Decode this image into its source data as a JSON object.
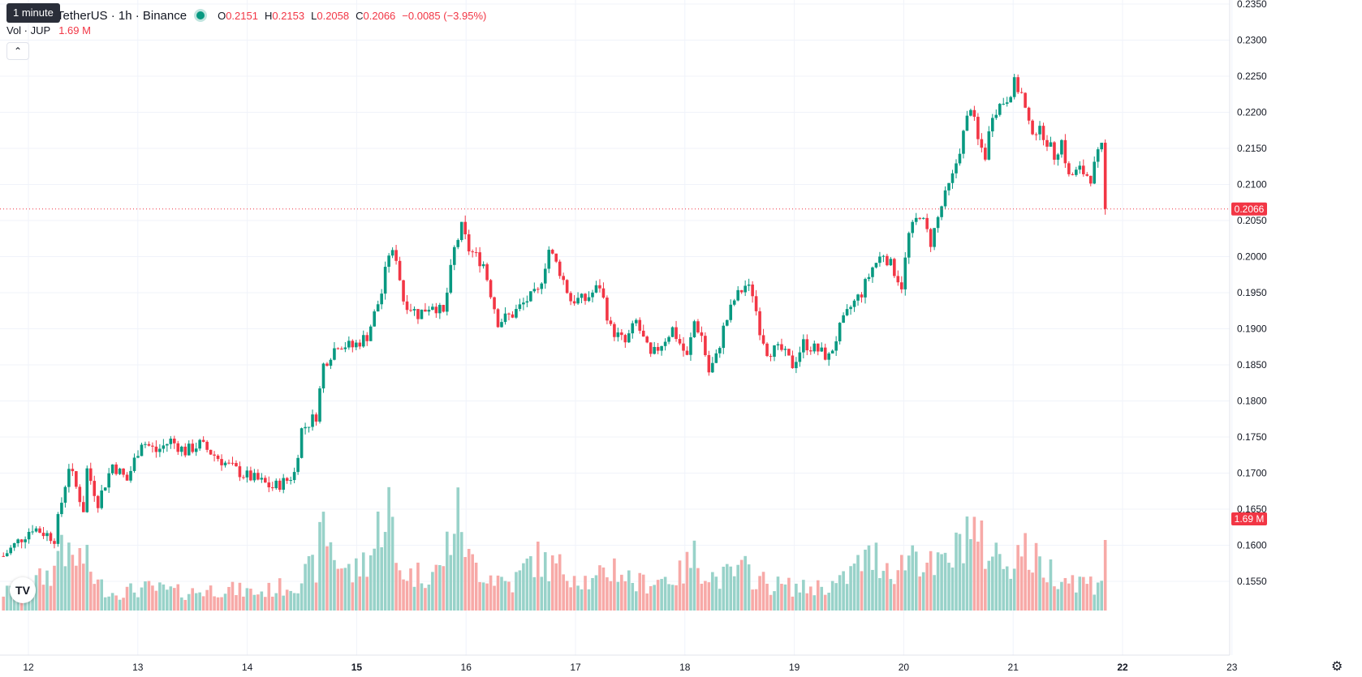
{
  "header": {
    "tooltip": "1 minute",
    "symbol": "TetherUS · 1h · Binance",
    "ohlc": [
      {
        "k": "O",
        "v": "0.2151"
      },
      {
        "k": "H",
        "v": "0.2153"
      },
      {
        "k": "L",
        "v": "0.2058"
      },
      {
        "k": "C",
        "v": "0.2066"
      }
    ],
    "change": "−0.0085 (−3.95%)",
    "vol_label": "Vol · JUP",
    "vol_value": "1.69 M"
  },
  "icons": {
    "collapse": "chevron-up-icon",
    "logo": "tradingview-logo",
    "settings": "gear-icon"
  },
  "colors": {
    "up": "#089981",
    "down": "#f23645",
    "vol_up": "#98d2c9",
    "vol_down": "#f7a9a7",
    "grid": "#f0f3fa"
  },
  "chart_data": {
    "type": "candlestick",
    "y_ticks": [
      "0.2350",
      "0.2300",
      "0.2250",
      "0.2200",
      "0.2150",
      "0.2100",
      "0.2050",
      "0.2000",
      "0.1950",
      "0.1900",
      "0.1850",
      "0.1800",
      "0.1750",
      "0.1700",
      "0.1650",
      "0.1600",
      "0.1550"
    ],
    "x_ticks": [
      {
        "label": "12",
        "bold": false
      },
      {
        "label": "13",
        "bold": false
      },
      {
        "label": "14",
        "bold": false
      },
      {
        "label": "15",
        "bold": true
      },
      {
        "label": "16",
        "bold": false
      },
      {
        "label": "17",
        "bold": false
      },
      {
        "label": "18",
        "bold": false
      },
      {
        "label": "19",
        "bold": false
      },
      {
        "label": "20",
        "bold": false
      },
      {
        "label": "21",
        "bold": false
      },
      {
        "label": "22",
        "bold": true
      },
      {
        "label": "23",
        "bold": false
      }
    ],
    "last_price": "0.2066",
    "last_volume": "1.69 M",
    "price_path": [
      [
        0,
        0.1585
      ],
      [
        8,
        0.1625
      ],
      [
        14,
        0.161
      ],
      [
        16,
        0.166
      ],
      [
        18,
        0.171
      ],
      [
        22,
        0.165
      ],
      [
        23,
        0.1705
      ],
      [
        26,
        0.166
      ],
      [
        30,
        0.1712
      ],
      [
        34,
        0.169
      ],
      [
        38,
        0.1745
      ],
      [
        42,
        0.173
      ],
      [
        46,
        0.1745
      ],
      [
        50,
        0.173
      ],
      [
        54,
        0.174
      ],
      [
        58,
        0.1725
      ],
      [
        62,
        0.171
      ],
      [
        66,
        0.1698
      ],
      [
        70,
        0.169
      ],
      [
        74,
        0.168
      ],
      [
        78,
        0.169
      ],
      [
        80,
        0.17
      ],
      [
        82,
        0.176
      ],
      [
        86,
        0.178
      ],
      [
        88,
        0.185
      ],
      [
        92,
        0.188
      ],
      [
        96,
        0.1875
      ],
      [
        100,
        0.189
      ],
      [
        104,
        0.195
      ],
      [
        106,
        0.2005
      ],
      [
        108,
        0.2
      ],
      [
        110,
        0.194
      ],
      [
        114,
        0.192
      ],
      [
        118,
        0.1935
      ],
      [
        121,
        0.192
      ],
      [
        124,
        0.201
      ],
      [
        126,
        0.204
      ],
      [
        128,
        0.201
      ],
      [
        132,
        0.199
      ],
      [
        136,
        0.191
      ],
      [
        140,
        0.192
      ],
      [
        144,
        0.194
      ],
      [
        147,
        0.195
      ],
      [
        150,
        0.201
      ],
      [
        153,
        0.198
      ],
      [
        156,
        0.194
      ],
      [
        160,
        0.194
      ],
      [
        164,
        0.196
      ],
      [
        167,
        0.19
      ],
      [
        171,
        0.188
      ],
      [
        174,
        0.191
      ],
      [
        178,
        0.186
      ],
      [
        181,
        0.188
      ],
      [
        184,
        0.19
      ],
      [
        188,
        0.186
      ],
      [
        190,
        0.191
      ],
      [
        192,
        0.189
      ],
      [
        194,
        0.184
      ],
      [
        196,
        0.186
      ],
      [
        198,
        0.19
      ],
      [
        201,
        0.194
      ],
      [
        204,
        0.196
      ],
      [
        206,
        0.195
      ],
      [
        208,
        0.19
      ],
      [
        210,
        0.187
      ],
      [
        214,
        0.187
      ],
      [
        217,
        0.185
      ],
      [
        220,
        0.188
      ],
      [
        224,
        0.187
      ],
      [
        227,
        0.186
      ],
      [
        230,
        0.19
      ],
      [
        233,
        0.193
      ],
      [
        236,
        0.195
      ],
      [
        239,
        0.1985
      ],
      [
        242,
        0.2005
      ],
      [
        245,
        0.198
      ],
      [
        247,
        0.196
      ],
      [
        249,
        0.203
      ],
      [
        252,
        0.206
      ],
      [
        255,
        0.202
      ],
      [
        258,
        0.207
      ],
      [
        261,
        0.211
      ],
      [
        264,
        0.217
      ],
      [
        266,
        0.221
      ],
      [
        268,
        0.216
      ],
      [
        270,
        0.214
      ],
      [
        272,
        0.22
      ],
      [
        276,
        0.222
      ],
      [
        278,
        0.224
      ],
      [
        280,
        0.2225
      ],
      [
        282,
        0.218
      ],
      [
        286,
        0.217
      ],
      [
        289,
        0.214
      ],
      [
        291,
        0.216
      ],
      [
        293,
        0.211
      ],
      [
        296,
        0.212
      ],
      [
        299,
        0.211
      ],
      [
        301,
        0.214
      ],
      [
        302,
        0.215
      ],
      [
        303,
        0.2066
      ]
    ],
    "volume_path": [
      [
        0,
        0.2
      ],
      [
        8,
        0.3
      ],
      [
        14,
        0.45
      ],
      [
        16,
        0.9
      ],
      [
        18,
        0.55
      ],
      [
        22,
        0.6
      ],
      [
        26,
        0.3
      ],
      [
        30,
        0.2
      ],
      [
        40,
        0.25
      ],
      [
        50,
        0.2
      ],
      [
        60,
        0.25
      ],
      [
        70,
        0.2
      ],
      [
        80,
        0.3
      ],
      [
        86,
        0.5
      ],
      [
        88,
        0.95
      ],
      [
        92,
        0.55
      ],
      [
        96,
        0.4
      ],
      [
        102,
        0.7
      ],
      [
        104,
        1.1
      ],
      [
        106,
        1.2
      ],
      [
        108,
        0.5
      ],
      [
        112,
        0.4
      ],
      [
        120,
        0.45
      ],
      [
        124,
        1.0
      ],
      [
        126,
        1.05
      ],
      [
        128,
        0.55
      ],
      [
        134,
        0.4
      ],
      [
        140,
        0.3
      ],
      [
        146,
        0.6
      ],
      [
        150,
        0.5
      ],
      [
        156,
        0.45
      ],
      [
        162,
        0.3
      ],
      [
        168,
        0.5
      ],
      [
        174,
        0.3
      ],
      [
        180,
        0.35
      ],
      [
        186,
        0.4
      ],
      [
        190,
        0.6
      ],
      [
        196,
        0.35
      ],
      [
        204,
        0.45
      ],
      [
        210,
        0.3
      ],
      [
        220,
        0.25
      ],
      [
        230,
        0.3
      ],
      [
        236,
        0.55
      ],
      [
        240,
        0.6
      ],
      [
        246,
        0.45
      ],
      [
        250,
        0.7
      ],
      [
        256,
        0.45
      ],
      [
        262,
        0.65
      ],
      [
        264,
        0.9
      ],
      [
        266,
        1.0
      ],
      [
        268,
        0.75
      ],
      [
        272,
        0.65
      ],
      [
        276,
        0.55
      ],
      [
        280,
        0.7
      ],
      [
        284,
        0.55
      ],
      [
        288,
        0.45
      ],
      [
        294,
        0.35
      ],
      [
        300,
        0.3
      ],
      [
        302,
        0.4
      ],
      [
        303,
        0.95
      ]
    ]
  }
}
